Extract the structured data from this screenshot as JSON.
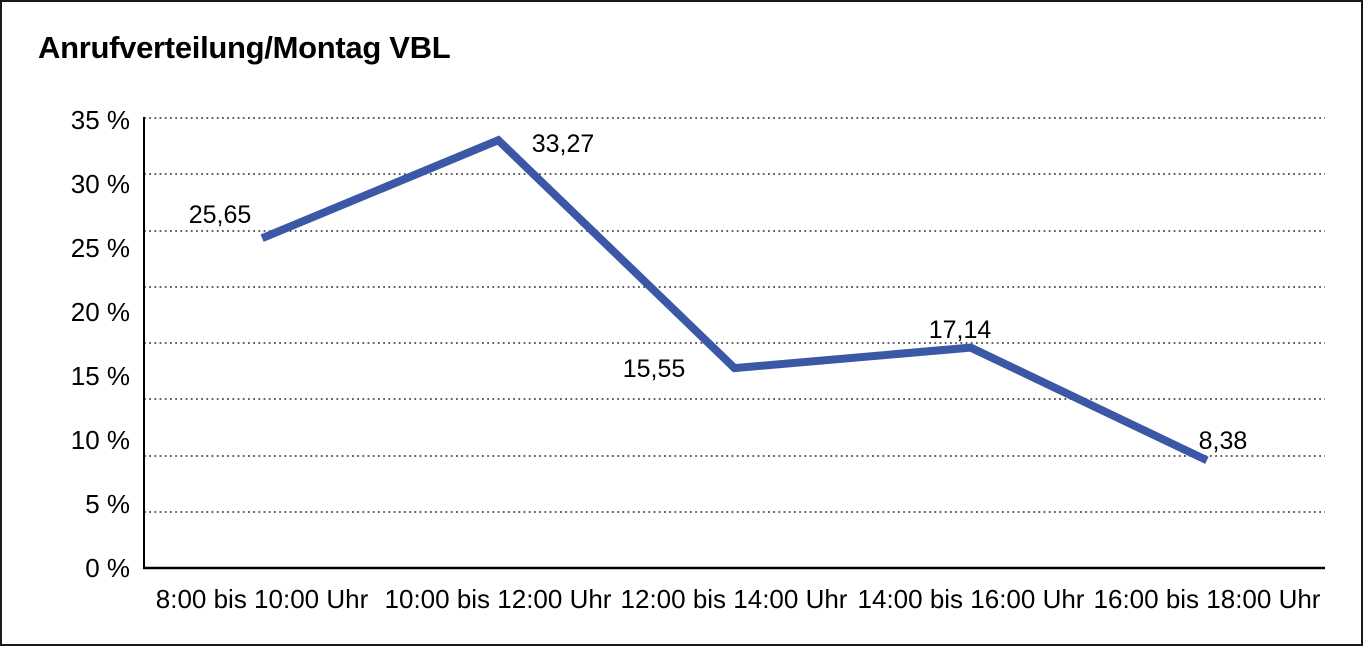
{
  "title": "Anrufverteilung/Montag VBL",
  "chart_data": {
    "type": "line",
    "title": "Anrufverteilung/Montag VBL",
    "categories": [
      "8:00 bis 10:00 Uhr",
      "10:00 bis 12:00 Uhr",
      "12:00 bis 14:00 Uhr",
      "14:00 bis 16:00 Uhr",
      "16:00 bis 18:00 Uhr"
    ],
    "values": [
      25.65,
      33.27,
      15.55,
      17.14,
      8.38
    ],
    "point_labels": [
      "25,65",
      "33,27",
      "15,55",
      "17,14",
      "8,38"
    ],
    "y_ticks": [
      "35 %",
      "30 %",
      "25 %",
      "20 %",
      "15 %",
      "10 %",
      "5 %",
      "0 %"
    ],
    "xlabel": "",
    "ylabel": "",
    "ylim": [
      0,
      35
    ],
    "grid": "horizontal-dotted",
    "legend": "none",
    "line_color": "#3A58A6",
    "axis_color": "#000000",
    "grid_color": "#4a4a4a"
  }
}
